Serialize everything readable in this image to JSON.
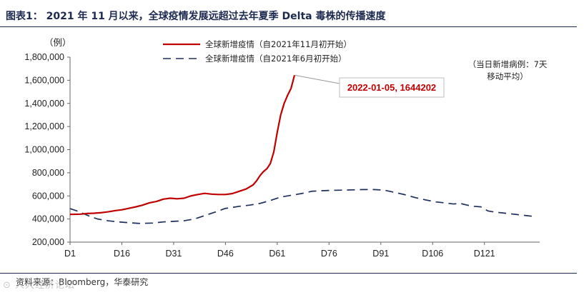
{
  "header": {
    "title": "图表1：  2021 年 11 月以来，全球疫情发展远超过去年夏季 Delta 毒株的传播速度"
  },
  "footer": {
    "source": "资料来源：Bloomberg，华泰研究",
    "watermark": "⊙ 人大经济论坛"
  },
  "colors": {
    "series_nov": "#c00000",
    "series_jun": "#1f2f5e",
    "axis": "#666666"
  },
  "chart_data": {
    "type": "line",
    "unit_label": "（例）",
    "x_ticks": [
      "D1",
      "D16",
      "D31",
      "D46",
      "D61",
      "D76",
      "D91",
      "D106",
      "D121"
    ],
    "x_tick_days": [
      1,
      16,
      31,
      46,
      61,
      76,
      91,
      106,
      121
    ],
    "xlim": [
      1,
      137
    ],
    "ylim": [
      200000,
      1800000
    ],
    "y_ticks": [
      200000,
      400000,
      600000,
      800000,
      1000000,
      1200000,
      1400000,
      1600000,
      1800000
    ],
    "y_tick_labels": [
      "200,000",
      "400,000",
      "600,000",
      "800,000",
      "1,000,000",
      "1,200,000",
      "1,400,000",
      "1,600,000",
      "1,800,000"
    ],
    "legend_placement": "top-center",
    "annotation": "（当日新增病例：7天移动平均）",
    "annotation_lines": [
      "（当日新增病例：7天",
      "移动平均）"
    ],
    "callout": {
      "label": "2022-01-05, 1644202",
      "x": 66,
      "y": 1644202
    },
    "series": [
      {
        "name": "全球新增疫情（自2021年11月初开始）",
        "style": "solid",
        "x": [
          1,
          4,
          6,
          8,
          10,
          12,
          14,
          16,
          18,
          20,
          22,
          24,
          26,
          28,
          30,
          32,
          34,
          36,
          38,
          40,
          42,
          44,
          46,
          48,
          50,
          52,
          54,
          55,
          56,
          57,
          58,
          59,
          60,
          61,
          62,
          63,
          64,
          65,
          66
        ],
        "y": [
          440000,
          442000,
          448000,
          450000,
          455000,
          462000,
          472000,
          480000,
          492000,
          505000,
          520000,
          540000,
          552000,
          572000,
          580000,
          575000,
          580000,
          600000,
          612000,
          622000,
          615000,
          612000,
          612000,
          620000,
          640000,
          660000,
          695000,
          730000,
          775000,
          810000,
          835000,
          880000,
          980000,
          1150000,
          1300000,
          1400000,
          1470000,
          1530000,
          1644202
        ]
      },
      {
        "name": "全球新增疫情（自2021年6月初开始）",
        "style": "dashed",
        "x": [
          1,
          3,
          5,
          7,
          9,
          12,
          15,
          18,
          21,
          25,
          28,
          31,
          34,
          37,
          40,
          43,
          46,
          48,
          50,
          53,
          56,
          59,
          62,
          65,
          68,
          71,
          74,
          77,
          80,
          83,
          86,
          89,
          92,
          95,
          98,
          101,
          104,
          107,
          110,
          112,
          114,
          116,
          118,
          120,
          122,
          124,
          127,
          130,
          133,
          136
        ],
        "y": [
          490000,
          470000,
          445000,
          420000,
          400000,
          385000,
          375000,
          368000,
          362000,
          365000,
          375000,
          380000,
          385000,
          400000,
          430000,
          460000,
          492000,
          500000,
          510000,
          520000,
          535000,
          560000,
          590000,
          605000,
          620000,
          640000,
          645000,
          648000,
          650000,
          652000,
          655000,
          655000,
          650000,
          630000,
          610000,
          585000,
          565000,
          548000,
          538000,
          530000,
          535000,
          520000,
          510000,
          505000,
          470000,
          460000,
          450000,
          440000,
          430000,
          420000
        ]
      }
    ]
  }
}
